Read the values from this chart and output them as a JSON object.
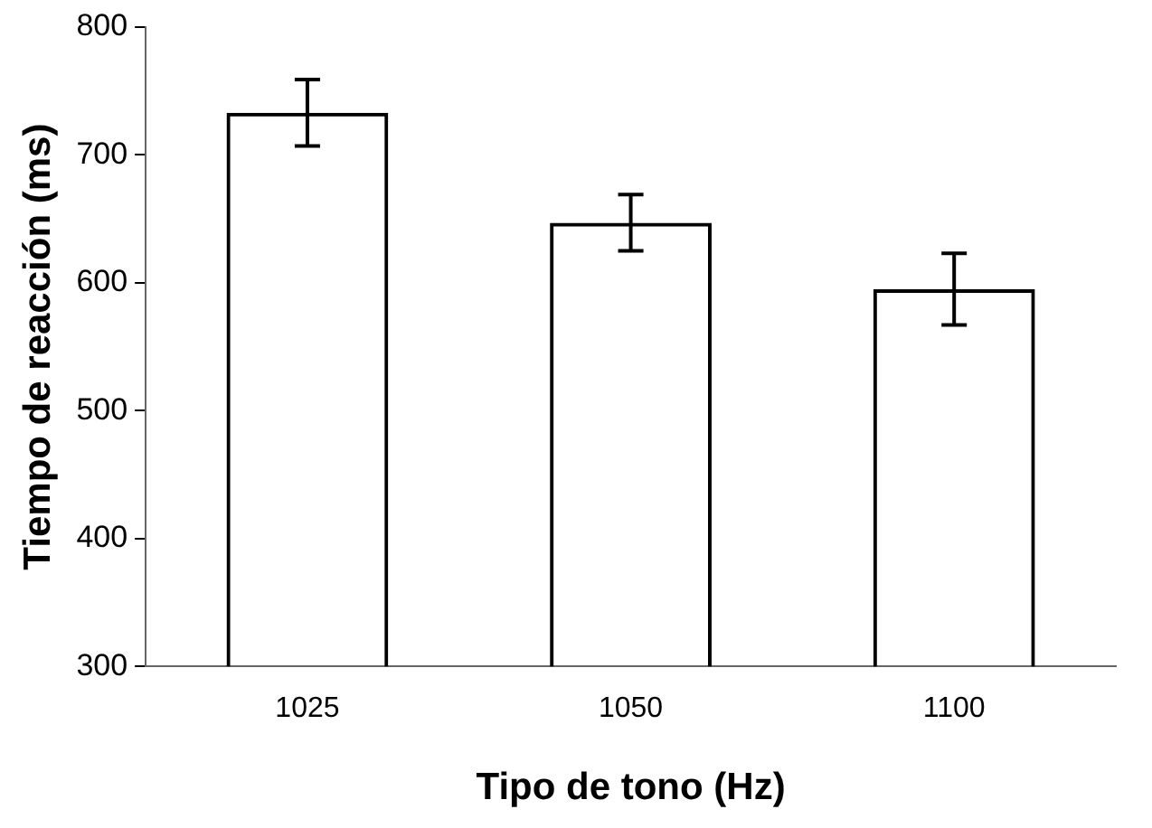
{
  "chart_data": {
    "type": "bar",
    "xlabel": "Tipo de tono (Hz)",
    "ylabel": "Tiempo de reacción (ms)",
    "categories": [
      "1025",
      "1050",
      "1100"
    ],
    "values": [
      733,
      647,
      595
    ],
    "errors": [
      26,
      22,
      28
    ],
    "color": "#000000",
    "ylim": [
      300,
      800
    ],
    "yticks": [
      300,
      400,
      500,
      600,
      700,
      800
    ],
    "grid": false,
    "legend": false
  }
}
